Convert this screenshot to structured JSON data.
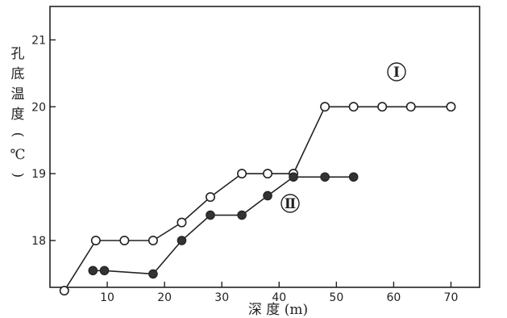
{
  "chart_data": {
    "type": "line",
    "ylabel": "孔底温度(℃)",
    "xlabel": "深 度 (m)",
    "xlim": [
      0,
      75
    ],
    "ylim": [
      17.3,
      21.5
    ],
    "xticks": [
      10,
      20,
      30,
      40,
      50,
      60,
      70
    ],
    "yticks": [
      18,
      19,
      20,
      21
    ],
    "grid": false,
    "series": [
      {
        "name": "Ⅰ",
        "marker": "open",
        "x": [
          2.5,
          8,
          13,
          18,
          23,
          28,
          33.5,
          38,
          42.5,
          48,
          53,
          58,
          63,
          70
        ],
        "y": [
          17.25,
          18.0,
          18.0,
          18.0,
          18.27,
          18.65,
          19.0,
          19.0,
          19.0,
          20.0,
          20.0,
          20.0,
          20.0,
          20.0
        ]
      },
      {
        "name": "Ⅱ",
        "marker": "filled",
        "x": [
          7.5,
          9.5,
          18,
          23,
          28,
          33.5,
          38,
          42.5,
          48,
          53
        ],
        "y": [
          17.55,
          17.55,
          17.5,
          18.0,
          18.38,
          18.38,
          18.67,
          18.95,
          18.95,
          18.95
        ]
      }
    ]
  }
}
